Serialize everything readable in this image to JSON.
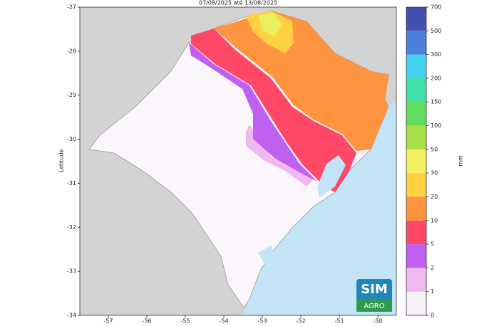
{
  "map": {
    "title": "07/08/2025 até 13/08/2025",
    "y_label": "Latitude",
    "xlim": [
      -57.74,
      -49.52
    ],
    "ylim": [
      -34,
      -27
    ],
    "xticks": [
      -57,
      -56,
      -55,
      -54,
      -53,
      -52,
      -51,
      -50
    ],
    "yticks": [
      -27,
      -28,
      -29,
      -30,
      -31,
      -32,
      -33,
      -34
    ],
    "colorbar": {
      "label": "mm",
      "levels": [
        0,
        1,
        2,
        5,
        10,
        20,
        30,
        50,
        100,
        150,
        200,
        300,
        500,
        700
      ],
      "colors": [
        "#f8f0f8",
        "#f0b8f0",
        "#c060f0",
        "#ff4868",
        "#ff9440",
        "#ffd040",
        "#f2f060",
        "#a8e048",
        "#60dc60",
        "#40e0a8",
        "#44d0f0",
        "#4a80dc",
        "#4450b0"
      ]
    },
    "logo": {
      "top": "SIM",
      "bottom": "AGRO"
    }
  }
}
